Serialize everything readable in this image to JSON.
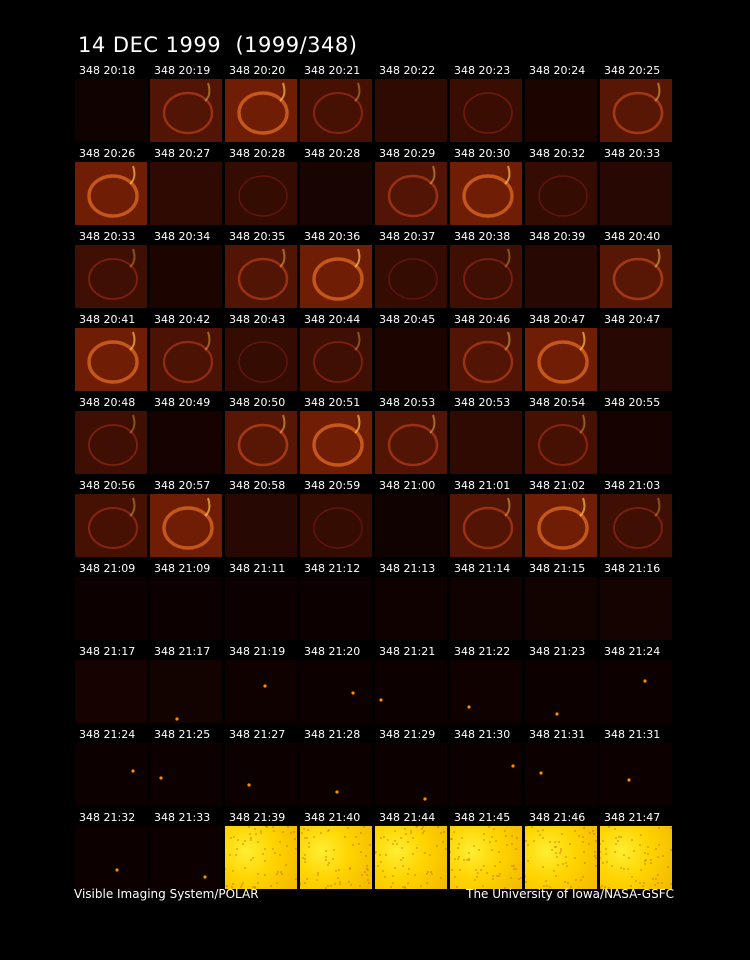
{
  "title": "14 DEC 1999  (1999/348)",
  "footer": {
    "left": "Visible Imaging System/POLAR",
    "right": "The University of Iowa/NASA-GSFC"
  },
  "frames": [
    {
      "label": "348 20:18",
      "level": 0.05
    },
    {
      "label": "348 20:19",
      "level": 0.6
    },
    {
      "label": "348 20:20",
      "level": 0.85
    },
    {
      "label": "348 20:21",
      "level": 0.5
    },
    {
      "label": "348 20:22",
      "level": 0.3
    },
    {
      "label": "348 20:23",
      "level": 0.4
    },
    {
      "label": "348 20:24",
      "level": 0.15
    },
    {
      "label": "348 20:25",
      "level": 0.65
    },
    {
      "label": "348 20:26",
      "level": 0.85
    },
    {
      "label": "348 20:27",
      "level": 0.3
    },
    {
      "label": "348 20:28",
      "level": 0.35
    },
    {
      "label": "348 20:28",
      "level": 0.12
    },
    {
      "label": "348 20:29",
      "level": 0.6
    },
    {
      "label": "348 20:30",
      "level": 0.85
    },
    {
      "label": "348 20:32",
      "level": 0.35
    },
    {
      "label": "348 20:33",
      "level": 0.25
    },
    {
      "label": "348 20:33",
      "level": 0.45
    },
    {
      "label": "348 20:34",
      "level": 0.15
    },
    {
      "label": "348 20:35",
      "level": 0.6
    },
    {
      "label": "348 20:36",
      "level": 0.85
    },
    {
      "label": "348 20:37",
      "level": 0.35
    },
    {
      "label": "348 20:38",
      "level": 0.45
    },
    {
      "label": "348 20:39",
      "level": 0.25
    },
    {
      "label": "348 20:40",
      "level": 0.65
    },
    {
      "label": "348 20:41",
      "level": 0.85
    },
    {
      "label": "348 20:42",
      "level": 0.55
    },
    {
      "label": "348 20:43",
      "level": 0.35
    },
    {
      "label": "348 20:44",
      "level": 0.45
    },
    {
      "label": "348 20:45",
      "level": 0.15
    },
    {
      "label": "348 20:46",
      "level": 0.6
    },
    {
      "label": "348 20:47",
      "level": 0.85
    },
    {
      "label": "348 20:47",
      "level": 0.25
    },
    {
      "label": "348 20:48",
      "level": 0.45
    },
    {
      "label": "348 20:49",
      "level": 0.1
    },
    {
      "label": "348 20:50",
      "level": 0.65
    },
    {
      "label": "348 20:51",
      "level": 0.85
    },
    {
      "label": "348 20:53",
      "level": 0.6
    },
    {
      "label": "348 20:53",
      "level": 0.3
    },
    {
      "label": "348 20:54",
      "level": 0.5
    },
    {
      "label": "348 20:55",
      "level": 0.1
    },
    {
      "label": "348 20:56",
      "level": 0.5
    },
    {
      "label": "348 20:57",
      "level": 0.85
    },
    {
      "label": "348 20:58",
      "level": 0.25
    },
    {
      "label": "348 20:59",
      "level": 0.35
    },
    {
      "label": "348 21:00",
      "level": 0.05
    },
    {
      "label": "348 21:01",
      "level": 0.6
    },
    {
      "label": "348 21:02",
      "level": 0.85
    },
    {
      "label": "348 21:03",
      "level": 0.45
    },
    {
      "label": "348 21:09",
      "level": 0.02
    },
    {
      "label": "348 21:09",
      "level": 0.02
    },
    {
      "label": "348 21:11",
      "level": 0.02
    },
    {
      "label": "348 21:12",
      "level": 0.02
    },
    {
      "label": "348 21:13",
      "level": 0.04
    },
    {
      "label": "348 21:14",
      "level": 0.05
    },
    {
      "label": "348 21:15",
      "level": 0.07
    },
    {
      "label": "348 21:16",
      "level": 0.08
    },
    {
      "label": "348 21:17",
      "level": 0.1
    },
    {
      "label": "348 21:17",
      "level": 0.07
    },
    {
      "label": "348 21:19",
      "level": 0.03
    },
    {
      "label": "348 21:20",
      "level": 0.02
    },
    {
      "label": "348 21:21",
      "level": 0.02
    },
    {
      "label": "348 21:22",
      "level": 0.03
    },
    {
      "label": "348 21:23",
      "level": 0.02
    },
    {
      "label": "348 21:24",
      "level": 0.02
    },
    {
      "label": "348 21:24",
      "level": 0.02
    },
    {
      "label": "348 21:25",
      "level": 0.02
    },
    {
      "label": "348 21:27",
      "level": 0.02
    },
    {
      "label": "348 21:28",
      "level": 0.02
    },
    {
      "label": "348 21:29",
      "level": 0.02
    },
    {
      "label": "348 21:30",
      "level": 0.02
    },
    {
      "label": "348 21:31",
      "level": 0.02
    },
    {
      "label": "348 21:31",
      "level": 0.02
    },
    {
      "label": "348 21:32",
      "level": 0.02
    },
    {
      "label": "348 21:33",
      "level": 0.02
    },
    {
      "label": "348 21:39",
      "level": 1.0
    },
    {
      "label": "348 21:40",
      "level": 1.0
    },
    {
      "label": "348 21:44",
      "level": 1.0
    },
    {
      "label": "348 21:45",
      "level": 1.0
    },
    {
      "label": "348 21:46",
      "level": 1.0
    },
    {
      "label": "348 21:47",
      "level": 1.0
    }
  ]
}
